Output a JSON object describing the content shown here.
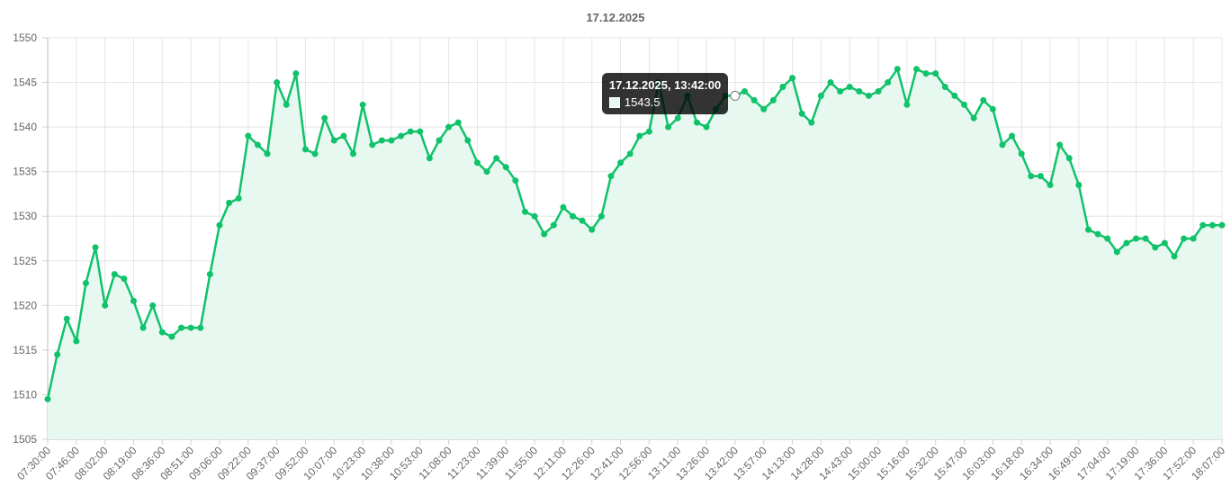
{
  "chart_data": {
    "type": "area",
    "title": "17.12.2025",
    "xlabel": "",
    "ylabel": "",
    "ylim": [
      1505,
      1550
    ],
    "y_ticks": [
      1505,
      1510,
      1515,
      1520,
      1525,
      1530,
      1535,
      1540,
      1545,
      1550
    ],
    "x_tick_labels": [
      "07:30:00",
      "07:46:00",
      "08:02:00",
      "08:19:00",
      "08:36:00",
      "08:51:00",
      "09:06:00",
      "09:22:00",
      "09:37:00",
      "09:52:00",
      "10:07:00",
      "10:23:00",
      "10:38:00",
      "10:53:00",
      "11:08:00",
      "11:23:00",
      "11:39:00",
      "11:55:00",
      "12:11:00",
      "12:26:00",
      "12:41:00",
      "12:56:00",
      "13:11:00",
      "13:26:00",
      "13:42:00",
      "13:57:00",
      "14:13:00",
      "14:28:00",
      "14:43:00",
      "15:00:00",
      "15:16:00",
      "15:32:00",
      "15:47:00",
      "16:03:00",
      "16:18:00",
      "16:34:00",
      "16:49:00",
      "17:04:00",
      "17:19:00",
      "17:36:00",
      "17:52:00",
      "18:07:00"
    ],
    "grid": true,
    "legend": "none",
    "series": [
      {
        "color": "#10c26a",
        "fill_color": "#e6f8ef",
        "values": [
          1509.5,
          1514.5,
          1518.5,
          1516,
          1522.5,
          1526.5,
          1520,
          1523.5,
          1523,
          1520.5,
          1517.5,
          1520,
          1517,
          1516.5,
          1517.5,
          1517.5,
          1517.5,
          1523.5,
          1529,
          1531.5,
          1532,
          1539,
          1538,
          1537,
          1545,
          1542.5,
          1546,
          1537.5,
          1537,
          1541,
          1538.5,
          1539,
          1537,
          1542.5,
          1538,
          1538.5,
          1538.5,
          1539,
          1539.5,
          1539.5,
          1536.5,
          1538.5,
          1540,
          1540.5,
          1538.5,
          1536,
          1535,
          1536.5,
          1535.5,
          1534,
          1530.5,
          1530,
          1528,
          1529,
          1531,
          1530,
          1529.5,
          1528.5,
          1530,
          1534.5,
          1536,
          1537,
          1539,
          1539.5,
          1545,
          1540,
          1541,
          1543.5,
          1540.5,
          1540,
          1542,
          1543.5,
          1543.5,
          1544,
          1543,
          1542,
          1543,
          1544.5,
          1545.5,
          1541.5,
          1540.5,
          1543.5,
          1545,
          1544,
          1544.5,
          1544,
          1543.5,
          1544,
          1545,
          1546.5,
          1542.5,
          1546.5,
          1546,
          1546,
          1544.5,
          1543.5,
          1542.5,
          1541,
          1543,
          1542,
          1538,
          1539,
          1537,
          1534.5,
          1534.5,
          1533.5,
          1538,
          1536.5,
          1533.5,
          1528.5,
          1528,
          1527.5,
          1526,
          1527,
          1527.5,
          1527.5,
          1526.5,
          1527,
          1525.5,
          1527.5,
          1527.5,
          1529,
          1529,
          1529
        ]
      }
    ],
    "active_index": 72
  },
  "tooltip": {
    "title": "17.12.2025, 13:42:00",
    "value": "1543.5",
    "swatch_color": "#e6f8ef"
  }
}
